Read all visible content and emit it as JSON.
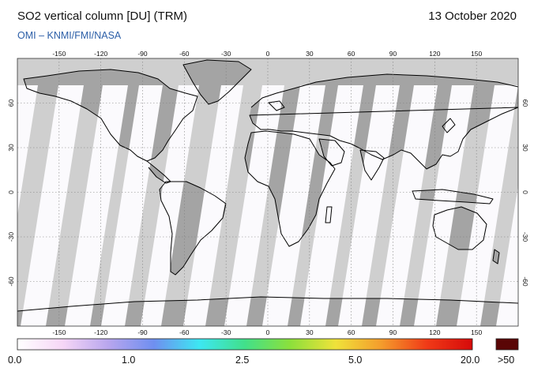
{
  "header": {
    "title": "SO2 vertical column [DU] (TRM)",
    "date": "13 October 2020",
    "credit": "OMI  –  KNMI/FMI/NASA"
  },
  "map": {
    "projection": "equirectangular",
    "lon_range": [
      -180,
      180
    ],
    "lat_range": [
      -90,
      90
    ],
    "lon_ticks": [
      -150,
      -120,
      -90,
      -60,
      -30,
      0,
      30,
      60,
      90,
      120,
      150
    ],
    "lat_ticks": [
      60,
      30,
      0,
      -30,
      -60
    ],
    "grid": true,
    "colors": {
      "no_data": "#cfcfcf",
      "land_no_data": "#a4a4a4",
      "measured": "#fbfafd",
      "coast": "#000000"
    }
  },
  "colorbar": {
    "labels": [
      "0.0",
      "1.0",
      "2.5",
      "5.0",
      "20.0",
      ">50"
    ],
    "gradient": [
      "#ffffff",
      "#f6d6f6",
      "#b8a6ee",
      "#6f8ff0",
      "#3de7f2",
      "#41e08a",
      "#8ce03b",
      "#f0e23a",
      "#f49c2c",
      "#f03a17",
      "#d60a0a"
    ],
    "overflow_color": "#5a0606"
  }
}
